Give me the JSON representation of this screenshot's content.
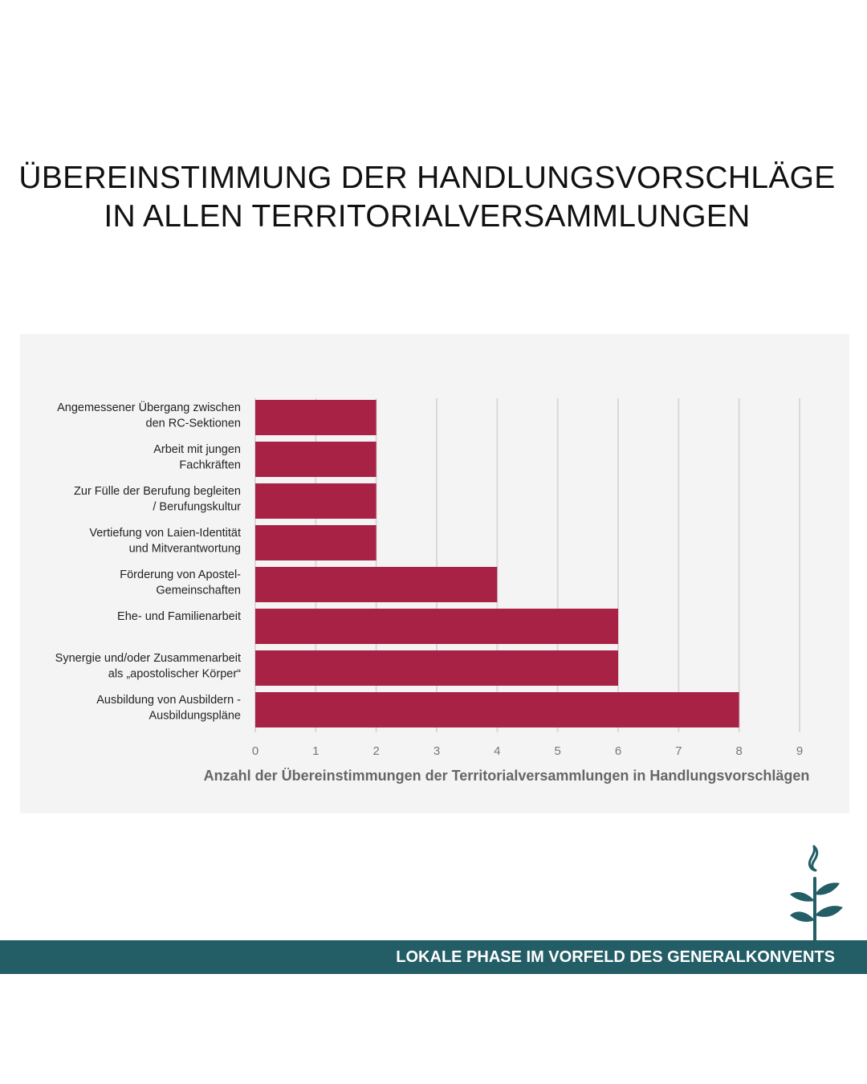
{
  "page": {
    "title_line1": "ÜBEREINSTIMMUNG DER HANDLUNGSVORSCHLÄGE",
    "title_line2": "IN ALLEN TERRITORIALVERSAMMLUNGEN"
  },
  "footer": {
    "text": "LOKALE PHASE IM VORFELD DES GENERALKONVENTS",
    "logo_icon": "plant-sprout-icon"
  },
  "colors": {
    "bar": "#a82245",
    "panel": "#f3f4f3",
    "grid": "#d9d9d9",
    "footer_band": "#235d66",
    "logo": "#235d66"
  },
  "chart_data": {
    "type": "bar",
    "orientation": "horizontal",
    "categories": [
      [
        "Angemessener Übergang zwischen",
        "den RC-Sektionen"
      ],
      [
        "Arbeit mit jungen",
        "Fachkräften"
      ],
      [
        "Zur Fülle der Berufung begleiten",
        "/ Berufungskultur"
      ],
      [
        "Vertiefung von Laien-Identität",
        "und Mitverantwortung"
      ],
      [
        "Förderung von Apostel-",
        "Gemeinschaften"
      ],
      [
        "Ehe- und Familienarbeit"
      ],
      [
        "Synergie und/oder Zusammenarbeit",
        "als „apostolischer Körper“"
      ],
      [
        "Ausbildung von Ausbildern -",
        "Ausbildungspläne"
      ]
    ],
    "values": [
      2,
      2,
      2,
      2,
      4,
      6,
      6,
      8
    ],
    "xlabel": "Anzahl der Übereinstimmungen der Territorialversammlungen in Handlungsvorschlägen",
    "ylabel": "",
    "xlim": [
      0,
      9
    ],
    "xticks": [
      "0",
      "1",
      "2",
      "3",
      "4",
      "5",
      "6",
      "7",
      "8",
      "9"
    ],
    "grid": true,
    "legend": "none"
  }
}
